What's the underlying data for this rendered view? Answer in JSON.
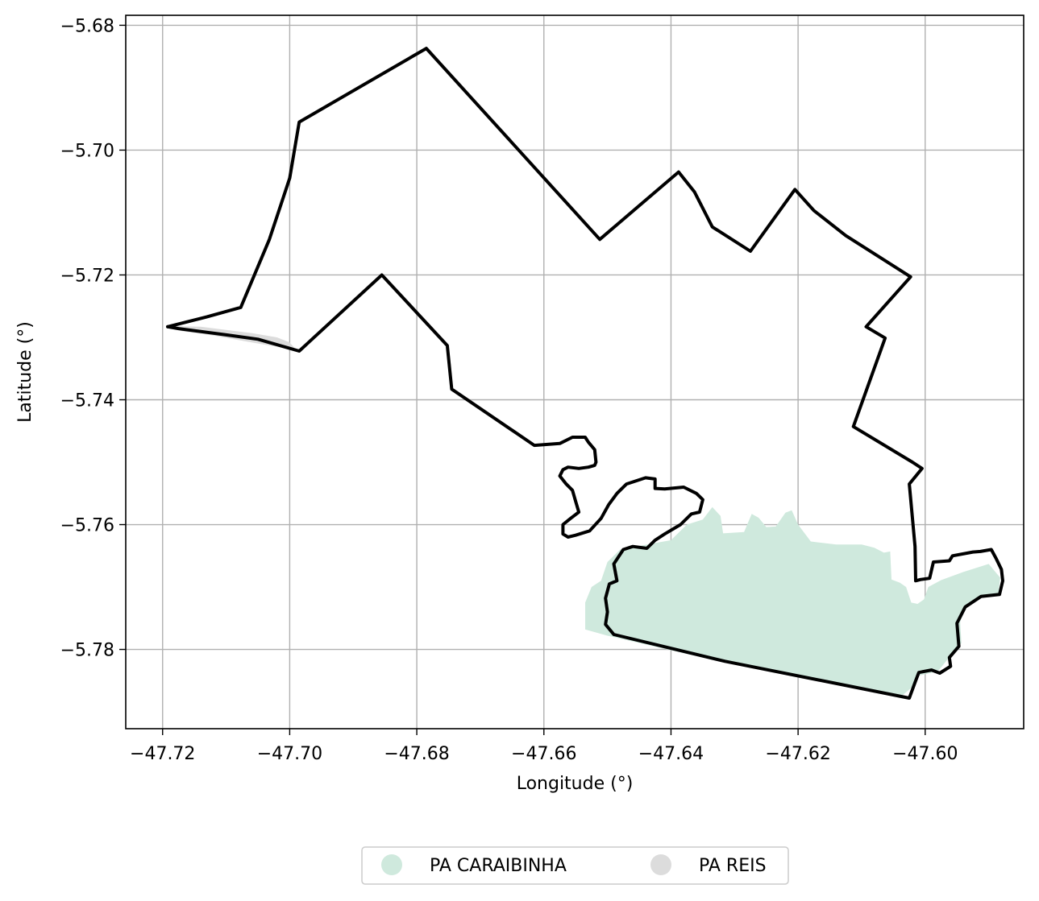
{
  "chart_data": {
    "type": "map",
    "xlabel": "Longitude (°)",
    "ylabel": "Latitude (°)",
    "xlim": [
      -47.7258,
      -47.5845
    ],
    "ylim": [
      -5.7927,
      -5.6784
    ],
    "grid": true,
    "xticks": [
      {
        "value": -47.72,
        "label": "−47.72"
      },
      {
        "value": -47.7,
        "label": "−47.70"
      },
      {
        "value": -47.68,
        "label": "−47.68"
      },
      {
        "value": -47.66,
        "label": "−47.66"
      },
      {
        "value": -47.64,
        "label": "−47.64"
      },
      {
        "value": -47.62,
        "label": "−47.62"
      },
      {
        "value": -47.6,
        "label": "−47.60"
      }
    ],
    "yticks": [
      {
        "value": -5.68,
        "label": "−5.68"
      },
      {
        "value": -5.7,
        "label": "−5.70"
      },
      {
        "value": -5.72,
        "label": "−5.72"
      },
      {
        "value": -5.74,
        "label": "−5.74"
      },
      {
        "value": -5.76,
        "label": "−5.76"
      },
      {
        "value": -5.78,
        "label": "−5.78"
      }
    ],
    "legend": {
      "placement": "bottom-center",
      "entries": [
        {
          "label": "PA CARAIBINHA",
          "color": "#cfe9dd"
        },
        {
          "label": "PA REIS",
          "color": "#dcdcdc"
        }
      ]
    },
    "regions": [
      {
        "name": "PA CARAIBINHA",
        "color": "#cfe9dd",
        "coords": [
          [
            -47.6455,
            -5.7635
          ],
          [
            -47.64,
            -5.7625
          ],
          [
            -47.6375,
            -5.76
          ],
          [
            -47.635,
            -5.7592
          ],
          [
            -47.6335,
            -5.7572
          ],
          [
            -47.6322,
            -5.7586
          ],
          [
            -47.6318,
            -5.7614
          ],
          [
            -47.6285,
            -5.7612
          ],
          [
            -47.6273,
            -5.7583
          ],
          [
            -47.6262,
            -5.7589
          ],
          [
            -47.625,
            -5.7604
          ],
          [
            -47.6235,
            -5.7603
          ],
          [
            -47.622,
            -5.7581
          ],
          [
            -47.621,
            -5.7577
          ],
          [
            -47.62,
            -5.76
          ],
          [
            -47.618,
            -5.7627
          ],
          [
            -47.614,
            -5.7632
          ],
          [
            -47.61,
            -5.7632
          ],
          [
            -47.608,
            -5.7637
          ],
          [
            -47.6065,
            -5.7645
          ],
          [
            -47.6055,
            -5.7643
          ],
          [
            -47.6053,
            -5.7688
          ],
          [
            -47.604,
            -5.7693
          ],
          [
            -47.603,
            -5.77
          ],
          [
            -47.6022,
            -5.7725
          ],
          [
            -47.6012,
            -5.7727
          ],
          [
            -47.6002,
            -5.772
          ],
          [
            -47.5995,
            -5.77
          ],
          [
            -47.5975,
            -5.7689
          ],
          [
            -47.594,
            -5.7676
          ],
          [
            -47.59,
            -5.7663
          ],
          [
            -47.5882,
            -5.7685
          ],
          [
            -47.5885,
            -5.7712
          ],
          [
            -47.591,
            -5.7713
          ],
          [
            -47.5935,
            -5.7732
          ],
          [
            -47.5945,
            -5.7755
          ],
          [
            -47.5943,
            -5.779
          ],
          [
            -47.596,
            -5.781
          ],
          [
            -47.598,
            -5.7835
          ],
          [
            -47.601,
            -5.7842
          ],
          [
            -47.602,
            -5.786
          ],
          [
            -47.604,
            -5.7877
          ],
          [
            -47.612,
            -5.786
          ],
          [
            -47.632,
            -5.782
          ],
          [
            -47.65,
            -5.7778
          ],
          [
            -47.6535,
            -5.7768
          ],
          [
            -47.6535,
            -5.7725
          ],
          [
            -47.6525,
            -5.77
          ],
          [
            -47.651,
            -5.769
          ],
          [
            -47.65,
            -5.766
          ],
          [
            -47.648,
            -5.764
          ]
        ]
      },
      {
        "name": "PA REIS",
        "color": "#dcdcdc",
        "coords": [
          [
            -47.719,
            -5.7282
          ],
          [
            -47.714,
            -5.7283
          ],
          [
            -47.71,
            -5.7288
          ],
          [
            -47.706,
            -5.7293
          ],
          [
            -47.702,
            -5.73
          ],
          [
            -47.7,
            -5.7308
          ],
          [
            -47.699,
            -5.732
          ],
          [
            -47.702,
            -5.7315
          ],
          [
            -47.706,
            -5.7308
          ],
          [
            -47.712,
            -5.7297
          ],
          [
            -47.717,
            -5.729
          ]
        ]
      }
    ],
    "outlines": [
      {
        "name": "outer boundary",
        "closed": false,
        "coords": [
          [
            -47.7192,
            -5.7283
          ],
          [
            -47.713,
            -5.7267
          ],
          [
            -47.7077,
            -5.7252
          ],
          [
            -47.7032,
            -5.7143
          ],
          [
            -47.7,
            -5.7045
          ],
          [
            -47.6985,
            -5.6955
          ],
          [
            -47.6785,
            -5.6837
          ],
          [
            -47.6512,
            -5.7143
          ],
          [
            -47.6388,
            -5.7035
          ],
          [
            -47.6363,
            -5.7067
          ],
          [
            -47.6335,
            -5.7123
          ],
          [
            -47.6275,
            -5.7162
          ],
          [
            -47.6205,
            -5.7063
          ],
          [
            -47.6175,
            -5.7097
          ],
          [
            -47.6125,
            -5.7137
          ],
          [
            -47.6023,
            -5.7203
          ],
          [
            -47.6093,
            -5.7283
          ],
          [
            -47.6063,
            -5.7301
          ],
          [
            -47.6113,
            -5.7443
          ],
          [
            -47.602,
            -5.75
          ],
          [
            -47.6005,
            -5.751
          ],
          [
            -47.6025,
            -5.7535
          ],
          [
            -47.6016,
            -5.7635
          ],
          [
            -47.6015,
            -5.769
          ],
          [
            -47.6007,
            -5.7688
          ],
          [
            -47.5993,
            -5.7686
          ],
          [
            -47.5987,
            -5.766
          ],
          [
            -47.5962,
            -5.7658
          ],
          [
            -47.5957,
            -5.765
          ],
          [
            -47.5925,
            -5.7644
          ],
          [
            -47.5913,
            -5.7643
          ],
          [
            -47.5896,
            -5.764
          ],
          [
            -47.5888,
            -5.7655
          ],
          [
            -47.588,
            -5.7672
          ],
          [
            -47.5878,
            -5.769
          ],
          [
            -47.5883,
            -5.7712
          ],
          [
            -47.5912,
            -5.7715
          ],
          [
            -47.5937,
            -5.7732
          ],
          [
            -47.595,
            -5.7758
          ],
          [
            -47.5947,
            -5.7795
          ],
          [
            -47.5962,
            -5.7813
          ],
          [
            -47.596,
            -5.7827
          ],
          [
            -47.5977,
            -5.7838
          ],
          [
            -47.599,
            -5.7833
          ],
          [
            -47.601,
            -5.7837
          ],
          [
            -47.6016,
            -5.7853
          ],
          [
            -47.6025,
            -5.7878
          ],
          [
            -47.6315,
            -5.7819
          ],
          [
            -47.649,
            -5.7776
          ],
          [
            -47.6503,
            -5.776
          ],
          [
            -47.65,
            -5.774
          ],
          [
            -47.6503,
            -5.7718
          ],
          [
            -47.6497,
            -5.7695
          ],
          [
            -47.6485,
            -5.769
          ],
          [
            -47.649,
            -5.7663
          ],
          [
            -47.6475,
            -5.764
          ],
          [
            -47.646,
            -5.7635
          ],
          [
            -47.6438,
            -5.7638
          ],
          [
            -47.6425,
            -5.7625
          ],
          [
            -47.641,
            -5.7615
          ],
          [
            -47.6385,
            -5.76
          ],
          [
            -47.6368,
            -5.7583
          ],
          [
            -47.6355,
            -5.758
          ],
          [
            -47.635,
            -5.756
          ],
          [
            -47.636,
            -5.755
          ],
          [
            -47.638,
            -5.754
          ],
          [
            -47.641,
            -5.7543
          ],
          [
            -47.6425,
            -5.7542
          ],
          [
            -47.6425,
            -5.7527
          ],
          [
            -47.644,
            -5.7525
          ],
          [
            -47.647,
            -5.7535
          ],
          [
            -47.6485,
            -5.755
          ],
          [
            -47.6498,
            -5.7568
          ],
          [
            -47.651,
            -5.759
          ],
          [
            -47.6528,
            -5.761
          ],
          [
            -47.655,
            -5.7617
          ],
          [
            -47.6562,
            -5.762
          ],
          [
            -47.657,
            -5.7615
          ],
          [
            -47.657,
            -5.76
          ],
          [
            -47.6558,
            -5.759
          ],
          [
            -47.6545,
            -5.758
          ],
          [
            -47.655,
            -5.7563
          ],
          [
            -47.6555,
            -5.7545
          ],
          [
            -47.6565,
            -5.7535
          ],
          [
            -47.6575,
            -5.7522
          ],
          [
            -47.657,
            -5.7512
          ],
          [
            -47.6562,
            -5.7508
          ],
          [
            -47.6545,
            -5.751
          ],
          [
            -47.653,
            -5.7508
          ],
          [
            -47.652,
            -5.7505
          ],
          [
            -47.6518,
            -5.75
          ],
          [
            -47.652,
            -5.748
          ],
          [
            -47.653,
            -5.7468
          ],
          [
            -47.6535,
            -5.746
          ],
          [
            -47.6555,
            -5.746
          ],
          [
            -47.6575,
            -5.747
          ],
          [
            -47.6615,
            -5.7473
          ],
          [
            -47.6745,
            -5.7383
          ],
          [
            -47.6752,
            -5.7313
          ],
          [
            -47.6855,
            -5.72
          ],
          [
            -47.6985,
            -5.7322
          ],
          [
            -47.705,
            -5.7303
          ],
          [
            -47.71,
            -5.7296
          ],
          [
            -47.7175,
            -5.7286
          ],
          [
            -47.7192,
            -5.7283
          ]
        ]
      }
    ]
  }
}
